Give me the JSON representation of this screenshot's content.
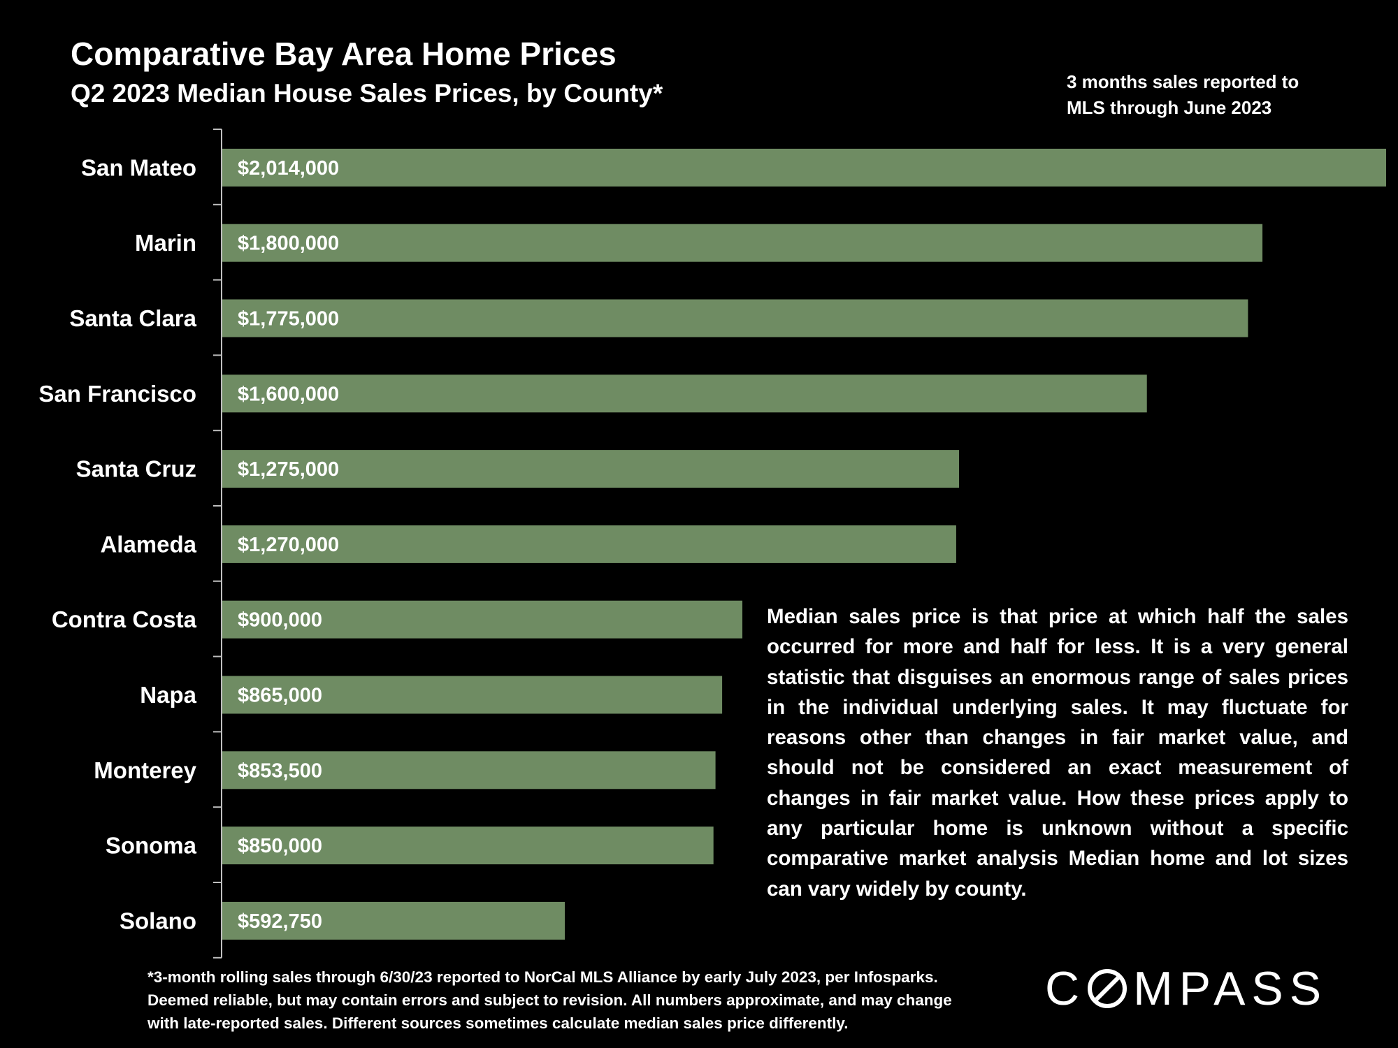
{
  "header": {
    "title": "Comparative Bay Area Home Prices",
    "subtitle": "Q2 2023 Median House Sales Prices, by County*",
    "note_lines": [
      "3 months sales reported to",
      "MLS through June 2023"
    ]
  },
  "chart_data": {
    "type": "bar",
    "orientation": "horizontal",
    "title": "Comparative Bay Area Home Prices",
    "subtitle": "Q2 2023 Median House Sales Prices, by County*",
    "categories": [
      "San Mateo",
      "Marin",
      "Santa Clara",
      "San Francisco",
      "Santa Cruz",
      "Alameda",
      "Contra Costa",
      "Napa",
      "Monterey",
      "Sonoma",
      "Solano"
    ],
    "values": [
      2014000,
      1800000,
      1775000,
      1600000,
      1275000,
      1270000,
      900000,
      865000,
      853500,
      850000,
      592750
    ],
    "value_labels": [
      "$2,014,000",
      "$1,800,000",
      "$1,775,000",
      "$1,600,000",
      "$1,275,000",
      "$1,270,000",
      "$900,000",
      "$865,000",
      "$853,500",
      "$850,000",
      "$592,750"
    ],
    "xlim": [
      0,
      2014000
    ],
    "bar_color": "#6f8c63",
    "grid": false,
    "legend": "none"
  },
  "description": "Median sales price is that price at which half the sales occurred for more and half for less. It is a very general statistic that disguises an enormous range of sales prices in the individual underlying sales. It may fluctuate for reasons other than changes in fair market value, and should not be considered an exact measurement of changes in fair market value. How these prices apply to any particular home is unknown without a specific comparative market analysis Median home and lot sizes can vary widely by county.",
  "footnote_lines": [
    "*3-month rolling sales through 6/30/23 reported to NorCal MLS Alliance by early July 2023, per Infosparks.",
    "Deemed reliable, but may contain errors and subject to revision. All numbers approximate, and may change",
    "with late-reported sales.  Different sources sometimes calculate median sales price differently."
  ],
  "logo": {
    "before": "C",
    "after": "MPASS",
    "full_text": "COMPASS"
  },
  "colors": {
    "background": "#000000",
    "bar": "#6f8c63",
    "text": "#ffffff"
  }
}
